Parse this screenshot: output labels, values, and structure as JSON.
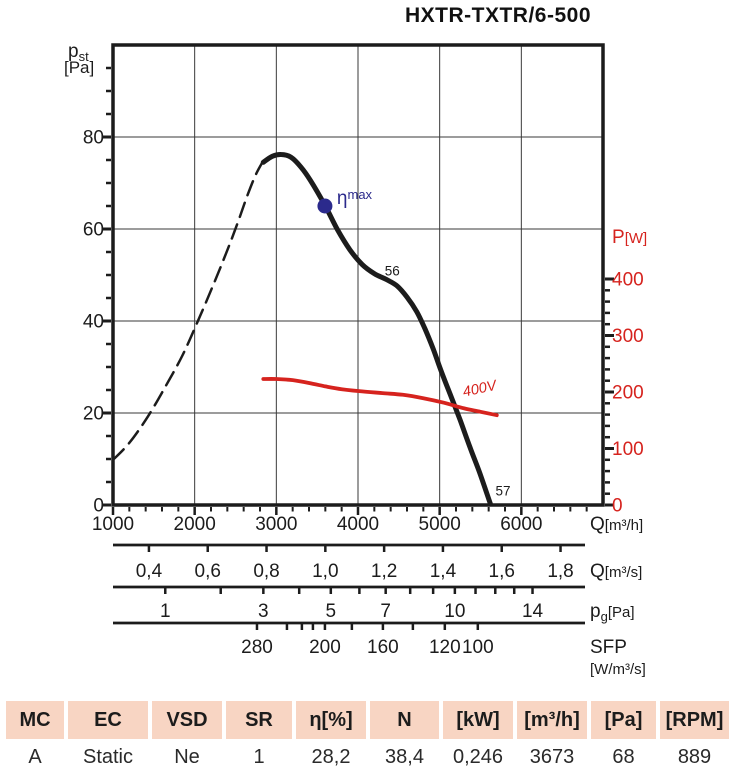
{
  "chart_data": {
    "type": "line",
    "title": "HXTR-TXTR/6-500",
    "x_axis": {
      "unit": {
        "main": "Q",
        "rest": "[m³/h]"
      },
      "min": 1000,
      "max": 7000,
      "major_ticks": [
        1000,
        2000,
        3000,
        4000,
        5000,
        6000
      ],
      "minor_step": 200,
      "grid_at": [
        2000,
        3000,
        4000,
        5000,
        6000
      ]
    },
    "y_left": {
      "title": {
        "main": "p",
        "sub": "st",
        "line2": "[Pa]"
      },
      "min": 0,
      "max": 100,
      "major_ticks": [
        0,
        20,
        40,
        60,
        80
      ],
      "minor_step": 5,
      "grid_at": [
        20,
        40,
        60,
        80
      ]
    },
    "y_right": {
      "title": {
        "main": "P",
        "rest": "[W]"
      },
      "color": "#d6231e",
      "min": 0,
      "max": 400,
      "major_ticks": [
        0,
        100,
        200,
        300,
        400
      ],
      "minor_step": 20
    },
    "series": [
      {
        "name": "static-pressure-extrapolated",
        "axis": "left",
        "style": "dashed",
        "color": "#1c1c1c",
        "points": [
          [
            1000,
            9.8
          ],
          [
            1200,
            13.5
          ],
          [
            1430,
            19.3
          ],
          [
            1650,
            26
          ],
          [
            1850,
            32.5
          ],
          [
            2040,
            40
          ],
          [
            2220,
            47.5
          ],
          [
            2380,
            54.5
          ],
          [
            2520,
            61
          ],
          [
            2640,
            67
          ],
          [
            2740,
            71.5
          ],
          [
            2820,
            74.2
          ]
        ]
      },
      {
        "name": "static-pressure",
        "axis": "left",
        "style": "solid",
        "color": "#1c1c1c",
        "points": [
          [
            2840,
            74.5
          ],
          [
            2950,
            75.8
          ],
          [
            3060,
            76.2
          ],
          [
            3180,
            75.6
          ],
          [
            3300,
            73.5
          ],
          [
            3420,
            70.5
          ],
          [
            3600,
            65
          ],
          [
            3750,
            59.8
          ],
          [
            3900,
            55.5
          ],
          [
            4050,
            52.3
          ],
          [
            4200,
            50.3
          ],
          [
            4350,
            49
          ],
          [
            4480,
            47.6
          ],
          [
            4600,
            45.2
          ],
          [
            4720,
            42
          ],
          [
            4820,
            38.3
          ],
          [
            4920,
            34
          ],
          [
            5010,
            29.5
          ],
          [
            5130,
            24
          ],
          [
            5250,
            18.5
          ],
          [
            5370,
            12.6
          ],
          [
            5490,
            7
          ],
          [
            5620,
            0.3
          ]
        ]
      },
      {
        "name": "power-400V",
        "axis": "right",
        "style": "solid",
        "color": "#d6231e",
        "points": [
          [
            2840,
            223
          ],
          [
            3000,
            223
          ],
          [
            3200,
            221
          ],
          [
            3400,
            216
          ],
          [
            3600,
            210
          ],
          [
            3800,
            205
          ],
          [
            4050,
            201
          ],
          [
            4300,
            198
          ],
          [
            4550,
            195
          ],
          [
            4800,
            189
          ],
          [
            5050,
            181
          ],
          [
            5300,
            171
          ],
          [
            5500,
            165
          ],
          [
            5700,
            159
          ]
        ]
      }
    ],
    "sub_axes": [
      {
        "name": "q-m3s",
        "unit": {
          "main": "Q",
          "rest": "[m³/s]"
        },
        "ticks": [
          {
            "label": "0,4",
            "q": 1440
          },
          {
            "label": "0,6",
            "q": 2160
          },
          {
            "label": "0,8",
            "q": 2880
          },
          {
            "label": "1,0",
            "q": 3600
          },
          {
            "label": "1,2",
            "q": 4320
          },
          {
            "label": "1,4",
            "q": 5040
          },
          {
            "label": "1,6",
            "q": 5760
          },
          {
            "label": "1,8",
            "q": 6480
          }
        ]
      },
      {
        "name": "pg-pa",
        "unit": {
          "main": "p",
          "sub": "g",
          "rest": "[Pa]"
        },
        "ticks": [
          {
            "label": "1",
            "q": 1640
          },
          {
            "label": "",
            "q": 2319
          },
          {
            "label": "3",
            "q": 2841
          },
          {
            "label": "",
            "q": 3280
          },
          {
            "label": "5",
            "q": 3667
          },
          {
            "label": "",
            "q": 4017
          },
          {
            "label": "7",
            "q": 4339
          },
          {
            "label": "",
            "q": 4639
          },
          {
            "label": "",
            "q": 4920
          },
          {
            "label": "10",
            "q": 5186
          },
          {
            "label": "",
            "q": 5439
          },
          {
            "label": "",
            "q": 5681
          },
          {
            "label": "",
            "q": 5913
          },
          {
            "label": "14",
            "q": 6137
          }
        ]
      },
      {
        "name": "sfp",
        "unit": {
          "main": "SFP",
          "line2": "[W/m³/s]"
        },
        "ticks": [
          {
            "label": "280",
            "q": 2763
          },
          {
            "label": "",
            "q": 3130
          },
          {
            "label": "",
            "q": 3313
          },
          {
            "label": "",
            "q": 3448
          },
          {
            "label": "200",
            "q": 3595
          },
          {
            "label": "",
            "q": 3925
          },
          {
            "label": "160",
            "q": 4305
          },
          {
            "label": "",
            "q": 4672
          },
          {
            "label": "120",
            "q": 5063
          },
          {
            "label": "100",
            "q": 5467
          }
        ]
      }
    ],
    "annotations": {
      "eta_max": {
        "symbol": "η",
        "exp": "max",
        "q": 3595,
        "pa": 65,
        "color": "#2b2a8c"
      },
      "point_56": {
        "text": "56",
        "q": 4420,
        "pa": 51
      },
      "point_57": {
        "text": "57",
        "q": 5775,
        "pa": 3.2
      },
      "voltage": {
        "text": "400V",
        "q": 5500,
        "w": 198,
        "rotate": -12
      }
    },
    "legend": "none",
    "grid": true
  },
  "table": {
    "header_bg": "#f8d5c3",
    "headers": [
      "MC",
      "EC",
      "VSD",
      "SR",
      "η[%]",
      "N",
      "[kW]",
      "[m³/h]",
      "[Pa]",
      "[RPM]"
    ],
    "values": [
      "A",
      "Static",
      "Ne",
      "1",
      "28,2",
      "38,4",
      "0,246",
      "3673",
      "68",
      "889"
    ]
  }
}
